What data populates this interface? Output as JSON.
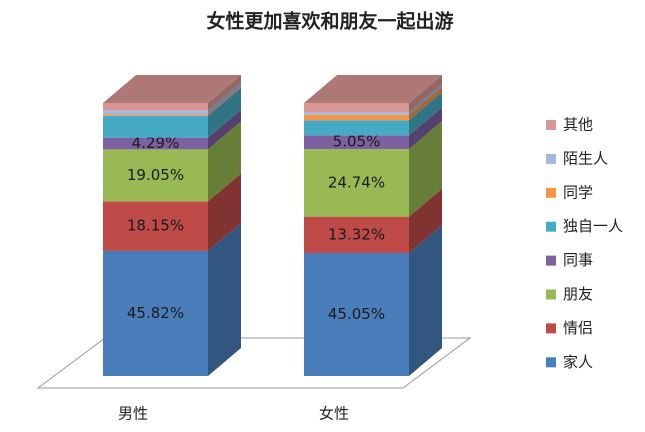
{
  "chart_data": {
    "type": "stacked-bar-3d",
    "title": "女性更加喜欢和朋友一起出游",
    "categories": [
      "男性",
      "女性"
    ],
    "ylim": [
      0,
      100
    ],
    "legend": "right",
    "series": [
      {
        "name": "家人",
        "color": "#4a7ebb",
        "values": [
          45.82,
          45.05
        ],
        "value_labels": [
          "45.82%",
          "45.05%"
        ]
      },
      {
        "name": "情侣",
        "color": "#be4b48",
        "values": [
          18.15,
          13.32
        ],
        "value_labels": [
          "18.15%",
          "13.32%"
        ]
      },
      {
        "name": "朋友",
        "color": "#98b954",
        "values": [
          19.05,
          24.74
        ],
        "value_labels": [
          "19.05%",
          "24.74%"
        ]
      },
      {
        "name": "同事",
        "color": "#7d60a0",
        "values": [
          4.29,
          5.05
        ],
        "value_labels": [
          "4.29%",
          "5.05%"
        ]
      },
      {
        "name": "独自一人",
        "color": "#46aac5",
        "values": [
          8.0,
          5.5
        ]
      },
      {
        "name": "同学",
        "color": "#f79646",
        "values": [
          0.5,
          2.0
        ]
      },
      {
        "name": "陌生人",
        "color": "#a5b8e0",
        "values": [
          1.5,
          1.0
        ]
      },
      {
        "name": "其他",
        "color": "#d99694",
        "values": [
          2.69,
          3.34
        ]
      }
    ]
  }
}
